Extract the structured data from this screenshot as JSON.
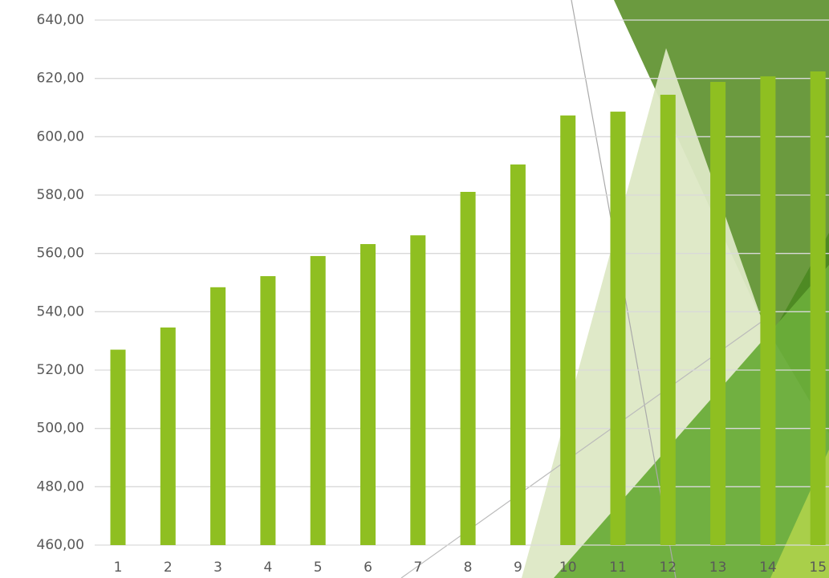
{
  "chart_data": {
    "type": "bar",
    "categories": [
      "1",
      "2",
      "3",
      "4",
      "5",
      "6",
      "7",
      "8",
      "9",
      "10",
      "11",
      "12",
      "13",
      "14",
      "15"
    ],
    "values": [
      527,
      534.6,
      548.4,
      552.2,
      559.1,
      563.2,
      566.2,
      581.1,
      590.5,
      607.3,
      608.6,
      614.4,
      618.8,
      620.7,
      622.4
    ],
    "color": "#8fbf21",
    "ylim": [
      460,
      640
    ],
    "yticks": [
      {
        "value": 460,
        "label": "460,00"
      },
      {
        "value": 480,
        "label": "480,00"
      },
      {
        "value": 500,
        "label": "500,00"
      },
      {
        "value": 520,
        "label": "520,00"
      },
      {
        "value": 540,
        "label": "540,00"
      },
      {
        "value": 560,
        "label": "560,00"
      },
      {
        "value": 580,
        "label": "580,00"
      },
      {
        "value": 600,
        "label": "600,00"
      },
      {
        "value": 620,
        "label": "620,00"
      },
      {
        "value": 640,
        "label": "640,00"
      }
    ],
    "grid": true
  }
}
